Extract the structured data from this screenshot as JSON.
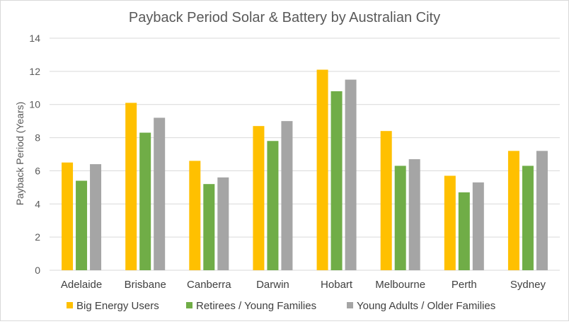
{
  "chart_data": {
    "type": "bar",
    "title": "Payback Period Solar & Battery by Australian City",
    "xlabel": "",
    "ylabel": "Payback Period (Years)",
    "ylim": [
      0,
      14
    ],
    "yticks": [
      0,
      2,
      4,
      6,
      8,
      10,
      12,
      14
    ],
    "grid": true,
    "legend": "bottom",
    "categories": [
      "Adelaide",
      "Brisbane",
      "Canberra",
      "Darwin",
      "Hobart",
      "Melbourne",
      "Perth",
      "Sydney"
    ],
    "series": [
      {
        "name": "Big Energy Users",
        "color": "#ffc000",
        "values": [
          6.5,
          10.1,
          6.6,
          8.7,
          12.1,
          8.4,
          5.7,
          7.2
        ]
      },
      {
        "name": "Retirees / Young Families",
        "color": "#70ad47",
        "values": [
          5.4,
          8.3,
          5.2,
          7.8,
          10.8,
          6.3,
          4.7,
          6.3
        ]
      },
      {
        "name": "Young Adults / Older Families",
        "color": "#a5a5a5",
        "values": [
          6.4,
          9.2,
          5.6,
          9.0,
          11.5,
          6.7,
          5.3,
          7.2
        ]
      }
    ]
  }
}
